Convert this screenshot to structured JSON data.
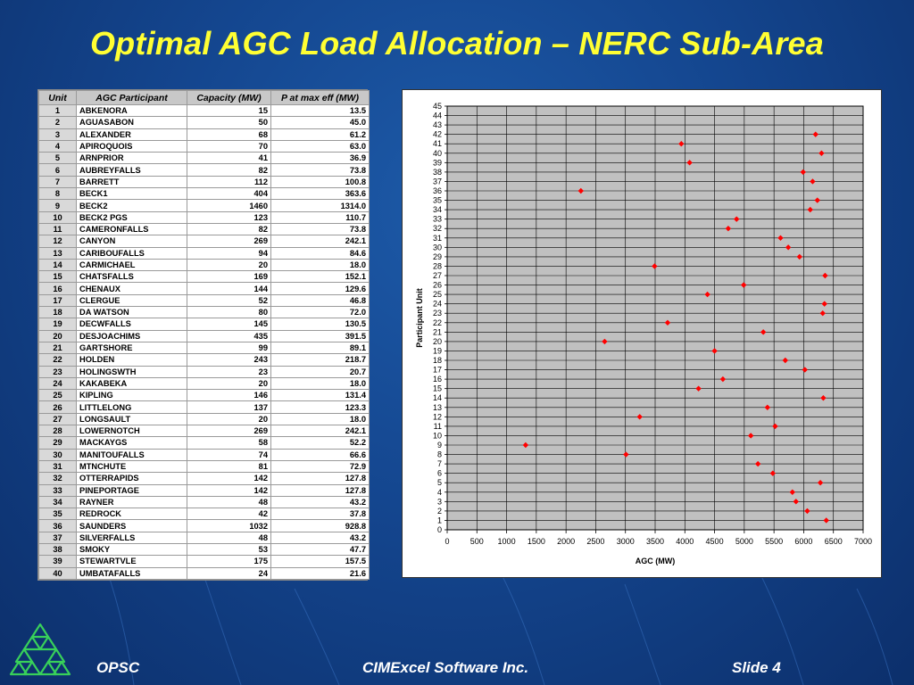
{
  "slide": {
    "title": "Optimal AGC Load Allocation – NERC Sub-Area",
    "footer_left": "OPSC",
    "footer_center": "CIMExcel Software Inc.",
    "footer_right": "Slide 4"
  },
  "colors": {
    "title": "#ffff33",
    "marker": "#ff0000",
    "plot_bg": "#c0c0c0"
  },
  "table": {
    "headers": [
      "Unit",
      "AGC Participant",
      "Capacity (MW)",
      "P at max eff (MW)"
    ],
    "rows": [
      [
        "1",
        "ABKENORA",
        "15",
        "13.5"
      ],
      [
        "2",
        "AGUASABON",
        "50",
        "45.0"
      ],
      [
        "3",
        "ALEXANDER",
        "68",
        "61.2"
      ],
      [
        "4",
        "APIROQUOIS",
        "70",
        "63.0"
      ],
      [
        "5",
        "ARNPRIOR",
        "41",
        "36.9"
      ],
      [
        "6",
        "AUBREYFALLS",
        "82",
        "73.8"
      ],
      [
        "7",
        "BARRETT",
        "112",
        "100.8"
      ],
      [
        "8",
        "BECK1",
        "404",
        "363.6"
      ],
      [
        "9",
        "BECK2",
        "1460",
        "1314.0"
      ],
      [
        "10",
        "BECK2 PGS",
        "123",
        "110.7"
      ],
      [
        "11",
        "CAMERONFALLS",
        "82",
        "73.8"
      ],
      [
        "12",
        "CANYON",
        "269",
        "242.1"
      ],
      [
        "13",
        "CARIBOUFALLS",
        "94",
        "84.6"
      ],
      [
        "14",
        "CARMICHAEL",
        "20",
        "18.0"
      ],
      [
        "15",
        "CHATSFALLS",
        "169",
        "152.1"
      ],
      [
        "16",
        "CHENAUX",
        "144",
        "129.6"
      ],
      [
        "17",
        "CLERGUE",
        "52",
        "46.8"
      ],
      [
        "18",
        "DA WATSON",
        "80",
        "72.0"
      ],
      [
        "19",
        "DECWFALLS",
        "145",
        "130.5"
      ],
      [
        "20",
        "DESJOACHIMS",
        "435",
        "391.5"
      ],
      [
        "21",
        "GARTSHORE",
        "99",
        "89.1"
      ],
      [
        "22",
        "HOLDEN",
        "243",
        "218.7"
      ],
      [
        "23",
        "HOLINGSWTH",
        "23",
        "20.7"
      ],
      [
        "24",
        "KAKABEKA",
        "20",
        "18.0"
      ],
      [
        "25",
        "KIPLING",
        "146",
        "131.4"
      ],
      [
        "26",
        "LITTLELONG",
        "137",
        "123.3"
      ],
      [
        "27",
        "LONGSAULT",
        "20",
        "18.0"
      ],
      [
        "28",
        "LOWERNOTCH",
        "269",
        "242.1"
      ],
      [
        "29",
        "MACKAYGS",
        "58",
        "52.2"
      ],
      [
        "30",
        "MANITOUFALLS",
        "74",
        "66.6"
      ],
      [
        "31",
        "MTNCHUTE",
        "81",
        "72.9"
      ],
      [
        "32",
        "OTTERRAPIDS",
        "142",
        "127.8"
      ],
      [
        "33",
        "PINEPORTAGE",
        "142",
        "127.8"
      ],
      [
        "34",
        "RAYNER",
        "48",
        "43.2"
      ],
      [
        "35",
        "REDROCK",
        "42",
        "37.8"
      ],
      [
        "36",
        "SAUNDERS",
        "1032",
        "928.8"
      ],
      [
        "37",
        "SILVERFALLS",
        "48",
        "43.2"
      ],
      [
        "38",
        "SMOKY",
        "53",
        "47.7"
      ],
      [
        "39",
        "STEWARTVLE",
        "175",
        "157.5"
      ],
      [
        "40",
        "UMBATAFALLS",
        "24",
        "21.6"
      ]
    ]
  },
  "chart_data": {
    "type": "scatter",
    "xlabel": "AGC (MW)",
    "ylabel": "Participant Unit",
    "xlim": [
      0,
      7000
    ],
    "ylim": [
      0,
      45
    ],
    "x_ticks": [
      0,
      500,
      1000,
      1500,
      2000,
      2500,
      3000,
      3500,
      4000,
      4500,
      5000,
      5500,
      6000,
      6500,
      7000
    ],
    "y_ticks": [
      0,
      1,
      2,
      3,
      4,
      5,
      6,
      7,
      8,
      9,
      10,
      11,
      12,
      13,
      14,
      15,
      16,
      17,
      18,
      19,
      20,
      21,
      22,
      23,
      24,
      25,
      26,
      27,
      28,
      29,
      30,
      31,
      32,
      33,
      34,
      35,
      36,
      37,
      38,
      39,
      40,
      41,
      42,
      43,
      44,
      45
    ],
    "grid": true,
    "points": [
      {
        "x": 6380,
        "y": 1
      },
      {
        "x": 6060,
        "y": 2
      },
      {
        "x": 5870,
        "y": 3
      },
      {
        "x": 5810,
        "y": 4
      },
      {
        "x": 6280,
        "y": 5
      },
      {
        "x": 5480,
        "y": 6
      },
      {
        "x": 5230,
        "y": 7
      },
      {
        "x": 3010,
        "y": 8
      },
      {
        "x": 1320,
        "y": 9
      },
      {
        "x": 5110,
        "y": 10
      },
      {
        "x": 5520,
        "y": 11
      },
      {
        "x": 3240,
        "y": 12
      },
      {
        "x": 5390,
        "y": 13
      },
      {
        "x": 6330,
        "y": 14
      },
      {
        "x": 4230,
        "y": 15
      },
      {
        "x": 4640,
        "y": 16
      },
      {
        "x": 6020,
        "y": 17
      },
      {
        "x": 5690,
        "y": 18
      },
      {
        "x": 4500,
        "y": 19
      },
      {
        "x": 2650,
        "y": 20
      },
      {
        "x": 5320,
        "y": 21
      },
      {
        "x": 3710,
        "y": 22
      },
      {
        "x": 6320,
        "y": 23
      },
      {
        "x": 6350,
        "y": 24
      },
      {
        "x": 4380,
        "y": 25
      },
      {
        "x": 4990,
        "y": 26
      },
      {
        "x": 6360,
        "y": 27
      },
      {
        "x": 3490,
        "y": 28
      },
      {
        "x": 5930,
        "y": 29
      },
      {
        "x": 5740,
        "y": 30
      },
      {
        "x": 5610,
        "y": 31
      },
      {
        "x": 4730,
        "y": 32
      },
      {
        "x": 4870,
        "y": 33
      },
      {
        "x": 6110,
        "y": 34
      },
      {
        "x": 6230,
        "y": 35
      },
      {
        "x": 2250,
        "y": 36
      },
      {
        "x": 6150,
        "y": 37
      },
      {
        "x": 5990,
        "y": 38
      },
      {
        "x": 4080,
        "y": 39
      },
      {
        "x": 6300,
        "y": 40
      },
      {
        "x": 3940,
        "y": 41
      },
      {
        "x": 6200,
        "y": 42
      }
    ]
  }
}
